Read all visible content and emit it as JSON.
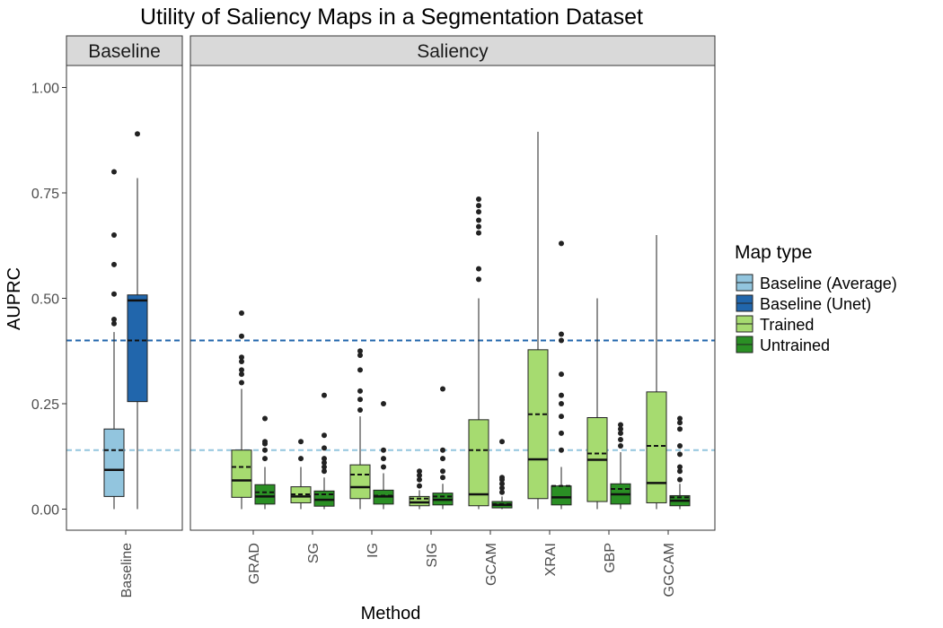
{
  "chart_data": {
    "type": "boxplot",
    "title": "Utility of Saliency Maps in a Segmentation Dataset",
    "xlabel": "Method",
    "ylabel": "AUPRC",
    "ylim": [
      -0.05,
      1.1
    ],
    "y_ticks": [
      "0.00",
      "0.25",
      "0.50",
      "0.75",
      "1.00"
    ],
    "y_tick_values": [
      0,
      0.25,
      0.5,
      0.75,
      1.0
    ],
    "grid": false,
    "legend_position": "right",
    "legend": {
      "title": "Map type",
      "items": [
        {
          "name": "Baseline (Average)",
          "color": "#92c5de"
        },
        {
          "name": "Baseline (Unet)",
          "color": "#2166ac"
        },
        {
          "name": "Trained",
          "color": "#a6db70"
        },
        {
          "name": "Untrained",
          "color": "#2a8f24"
        }
      ]
    },
    "reference_lines": [
      {
        "value": 0.4,
        "color": "#2166ac",
        "style": "dashed"
      },
      {
        "value": 0.14,
        "color": "#92c5de",
        "style": "dashed"
      }
    ],
    "panels": [
      {
        "strip": "Baseline",
        "categories": [
          "Baseline"
        ],
        "boxes": [
          {
            "category": "Baseline",
            "group": "Baseline (Average)",
            "min": 0.0,
            "q1": 0.03,
            "median": 0.093,
            "q3": 0.19,
            "max": 0.42,
            "mean": 0.14,
            "outliers": [
              0.44,
              0.45,
              0.51,
              0.58,
              0.65,
              0.8
            ]
          },
          {
            "category": "Baseline",
            "group": "Baseline (Unet)",
            "min": 0.0,
            "q1": 0.255,
            "median": 0.495,
            "q3": 0.508,
            "max": 0.785,
            "mean": 0.4,
            "outliers": [
              0.89
            ]
          }
        ]
      },
      {
        "strip": "Saliency",
        "categories": [
          "GRAD",
          "SG",
          "IG",
          "SIG",
          "GCAM",
          "XRAI",
          "GBP",
          "GGCAM"
        ],
        "boxes": [
          {
            "category": "GRAD",
            "group": "Trained",
            "min": 0.0,
            "q1": 0.028,
            "median": 0.068,
            "q3": 0.14,
            "max": 0.285,
            "mean": 0.1,
            "outliers": [
              0.3,
              0.32,
              0.33,
              0.35,
              0.36,
              0.41,
              0.465
            ]
          },
          {
            "category": "GRAD",
            "group": "Untrained",
            "min": 0.0,
            "q1": 0.012,
            "median": 0.03,
            "q3": 0.058,
            "max": 0.1,
            "mean": 0.04,
            "outliers": [
              0.12,
              0.14,
              0.155,
              0.16,
              0.215
            ]
          },
          {
            "category": "SG",
            "group": "Trained",
            "min": 0.0,
            "q1": 0.015,
            "median": 0.03,
            "q3": 0.053,
            "max": 0.1,
            "mean": 0.035,
            "outliers": [
              0.12,
              0.16
            ]
          },
          {
            "category": "SG",
            "group": "Untrained",
            "min": 0.0,
            "q1": 0.007,
            "median": 0.022,
            "q3": 0.043,
            "max": 0.075,
            "mean": 0.035,
            "outliers": [
              0.09,
              0.1,
              0.11,
              0.12,
              0.145,
              0.175,
              0.27
            ]
          },
          {
            "category": "IG",
            "group": "Trained",
            "min": 0.0,
            "q1": 0.025,
            "median": 0.052,
            "q3": 0.105,
            "max": 0.22,
            "mean": 0.082,
            "outliers": [
              0.235,
              0.26,
              0.28,
              0.33,
              0.365,
              0.375
            ]
          },
          {
            "category": "IG",
            "group": "Untrained",
            "min": 0.0,
            "q1": 0.012,
            "median": 0.03,
            "q3": 0.045,
            "max": 0.085,
            "mean": 0.032,
            "outliers": [
              0.1,
              0.12,
              0.14,
              0.25
            ]
          },
          {
            "category": "SIG",
            "group": "Trained",
            "min": 0.0,
            "q1": 0.008,
            "median": 0.016,
            "q3": 0.03,
            "max": 0.045,
            "mean": 0.025,
            "outliers": [
              0.055,
              0.07,
              0.08,
              0.09
            ]
          },
          {
            "category": "SIG",
            "group": "Untrained",
            "min": 0.0,
            "q1": 0.01,
            "median": 0.022,
            "q3": 0.038,
            "max": 0.06,
            "mean": 0.03,
            "outliers": [
              0.075,
              0.09,
              0.12,
              0.14,
              0.285
            ]
          },
          {
            "category": "GCAM",
            "group": "Trained",
            "min": 0.0,
            "q1": 0.008,
            "median": 0.035,
            "q3": 0.212,
            "max": 0.5,
            "mean": 0.14,
            "outliers": [
              0.545,
              0.57,
              0.655,
              0.67,
              0.685,
              0.705,
              0.72,
              0.735
            ]
          },
          {
            "category": "GCAM",
            "group": "Untrained",
            "min": 0.0,
            "q1": 0.003,
            "median": 0.01,
            "q3": 0.018,
            "max": 0.03,
            "mean": 0.012,
            "outliers": [
              0.04,
              0.05,
              0.06,
              0.07,
              0.075,
              0.16
            ]
          },
          {
            "category": "XRAI",
            "group": "Trained",
            "min": 0.0,
            "q1": 0.025,
            "median": 0.118,
            "q3": 0.378,
            "max": 0.895,
            "mean": 0.225,
            "outliers": []
          },
          {
            "category": "XRAI",
            "group": "Untrained",
            "min": 0.0,
            "q1": 0.01,
            "median": 0.028,
            "q3": 0.055,
            "max": 0.1,
            "mean": 0.055,
            "outliers": [
              0.14,
              0.18,
              0.22,
              0.25,
              0.27,
              0.32,
              0.4,
              0.415,
              0.63
            ]
          },
          {
            "category": "GBP",
            "group": "Trained",
            "min": 0.0,
            "q1": 0.018,
            "median": 0.117,
            "q3": 0.217,
            "max": 0.5,
            "mean": 0.132,
            "outliers": []
          },
          {
            "category": "GBP",
            "group": "Untrained",
            "min": 0.0,
            "q1": 0.012,
            "median": 0.035,
            "q3": 0.06,
            "max": 0.135,
            "mean": 0.048,
            "outliers": [
              0.15,
              0.165,
              0.18,
              0.19,
              0.2
            ]
          },
          {
            "category": "GGCAM",
            "group": "Trained",
            "min": 0.0,
            "q1": 0.015,
            "median": 0.062,
            "q3": 0.278,
            "max": 0.65,
            "mean": 0.15,
            "outliers": []
          },
          {
            "category": "GGCAM",
            "group": "Untrained",
            "min": 0.0,
            "q1": 0.008,
            "median": 0.02,
            "q3": 0.032,
            "max": 0.06,
            "mean": 0.028,
            "outliers": [
              0.07,
              0.09,
              0.1,
              0.13,
              0.15,
              0.19,
              0.205,
              0.215
            ]
          }
        ]
      }
    ]
  }
}
